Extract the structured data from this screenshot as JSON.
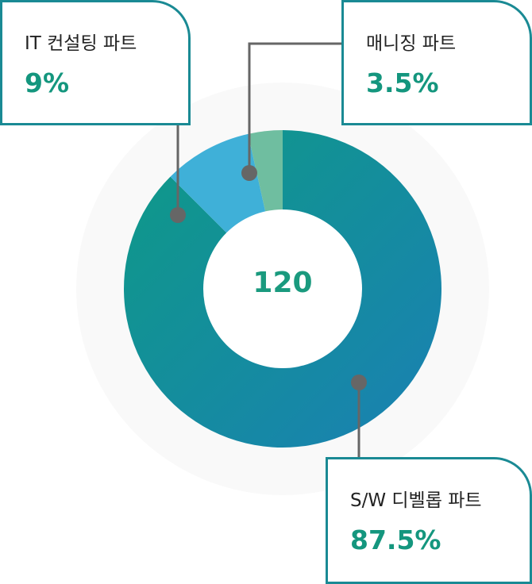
{
  "chart_data": {
    "type": "donut",
    "center_label": "120",
    "slices": [
      {
        "label": "S/W 디벨롭 파트",
        "value_text": "87.5%",
        "value": 87.5,
        "color": "#1a8aa8"
      },
      {
        "label": "IT 컨설팅 파트",
        "value_text": "9%",
        "value": 9,
        "color": "#3fb0d8"
      },
      {
        "label": "매니징 파트",
        "value_text": "3.5%",
        "value": 3.5,
        "color": "#6fbea0"
      }
    ]
  }
}
